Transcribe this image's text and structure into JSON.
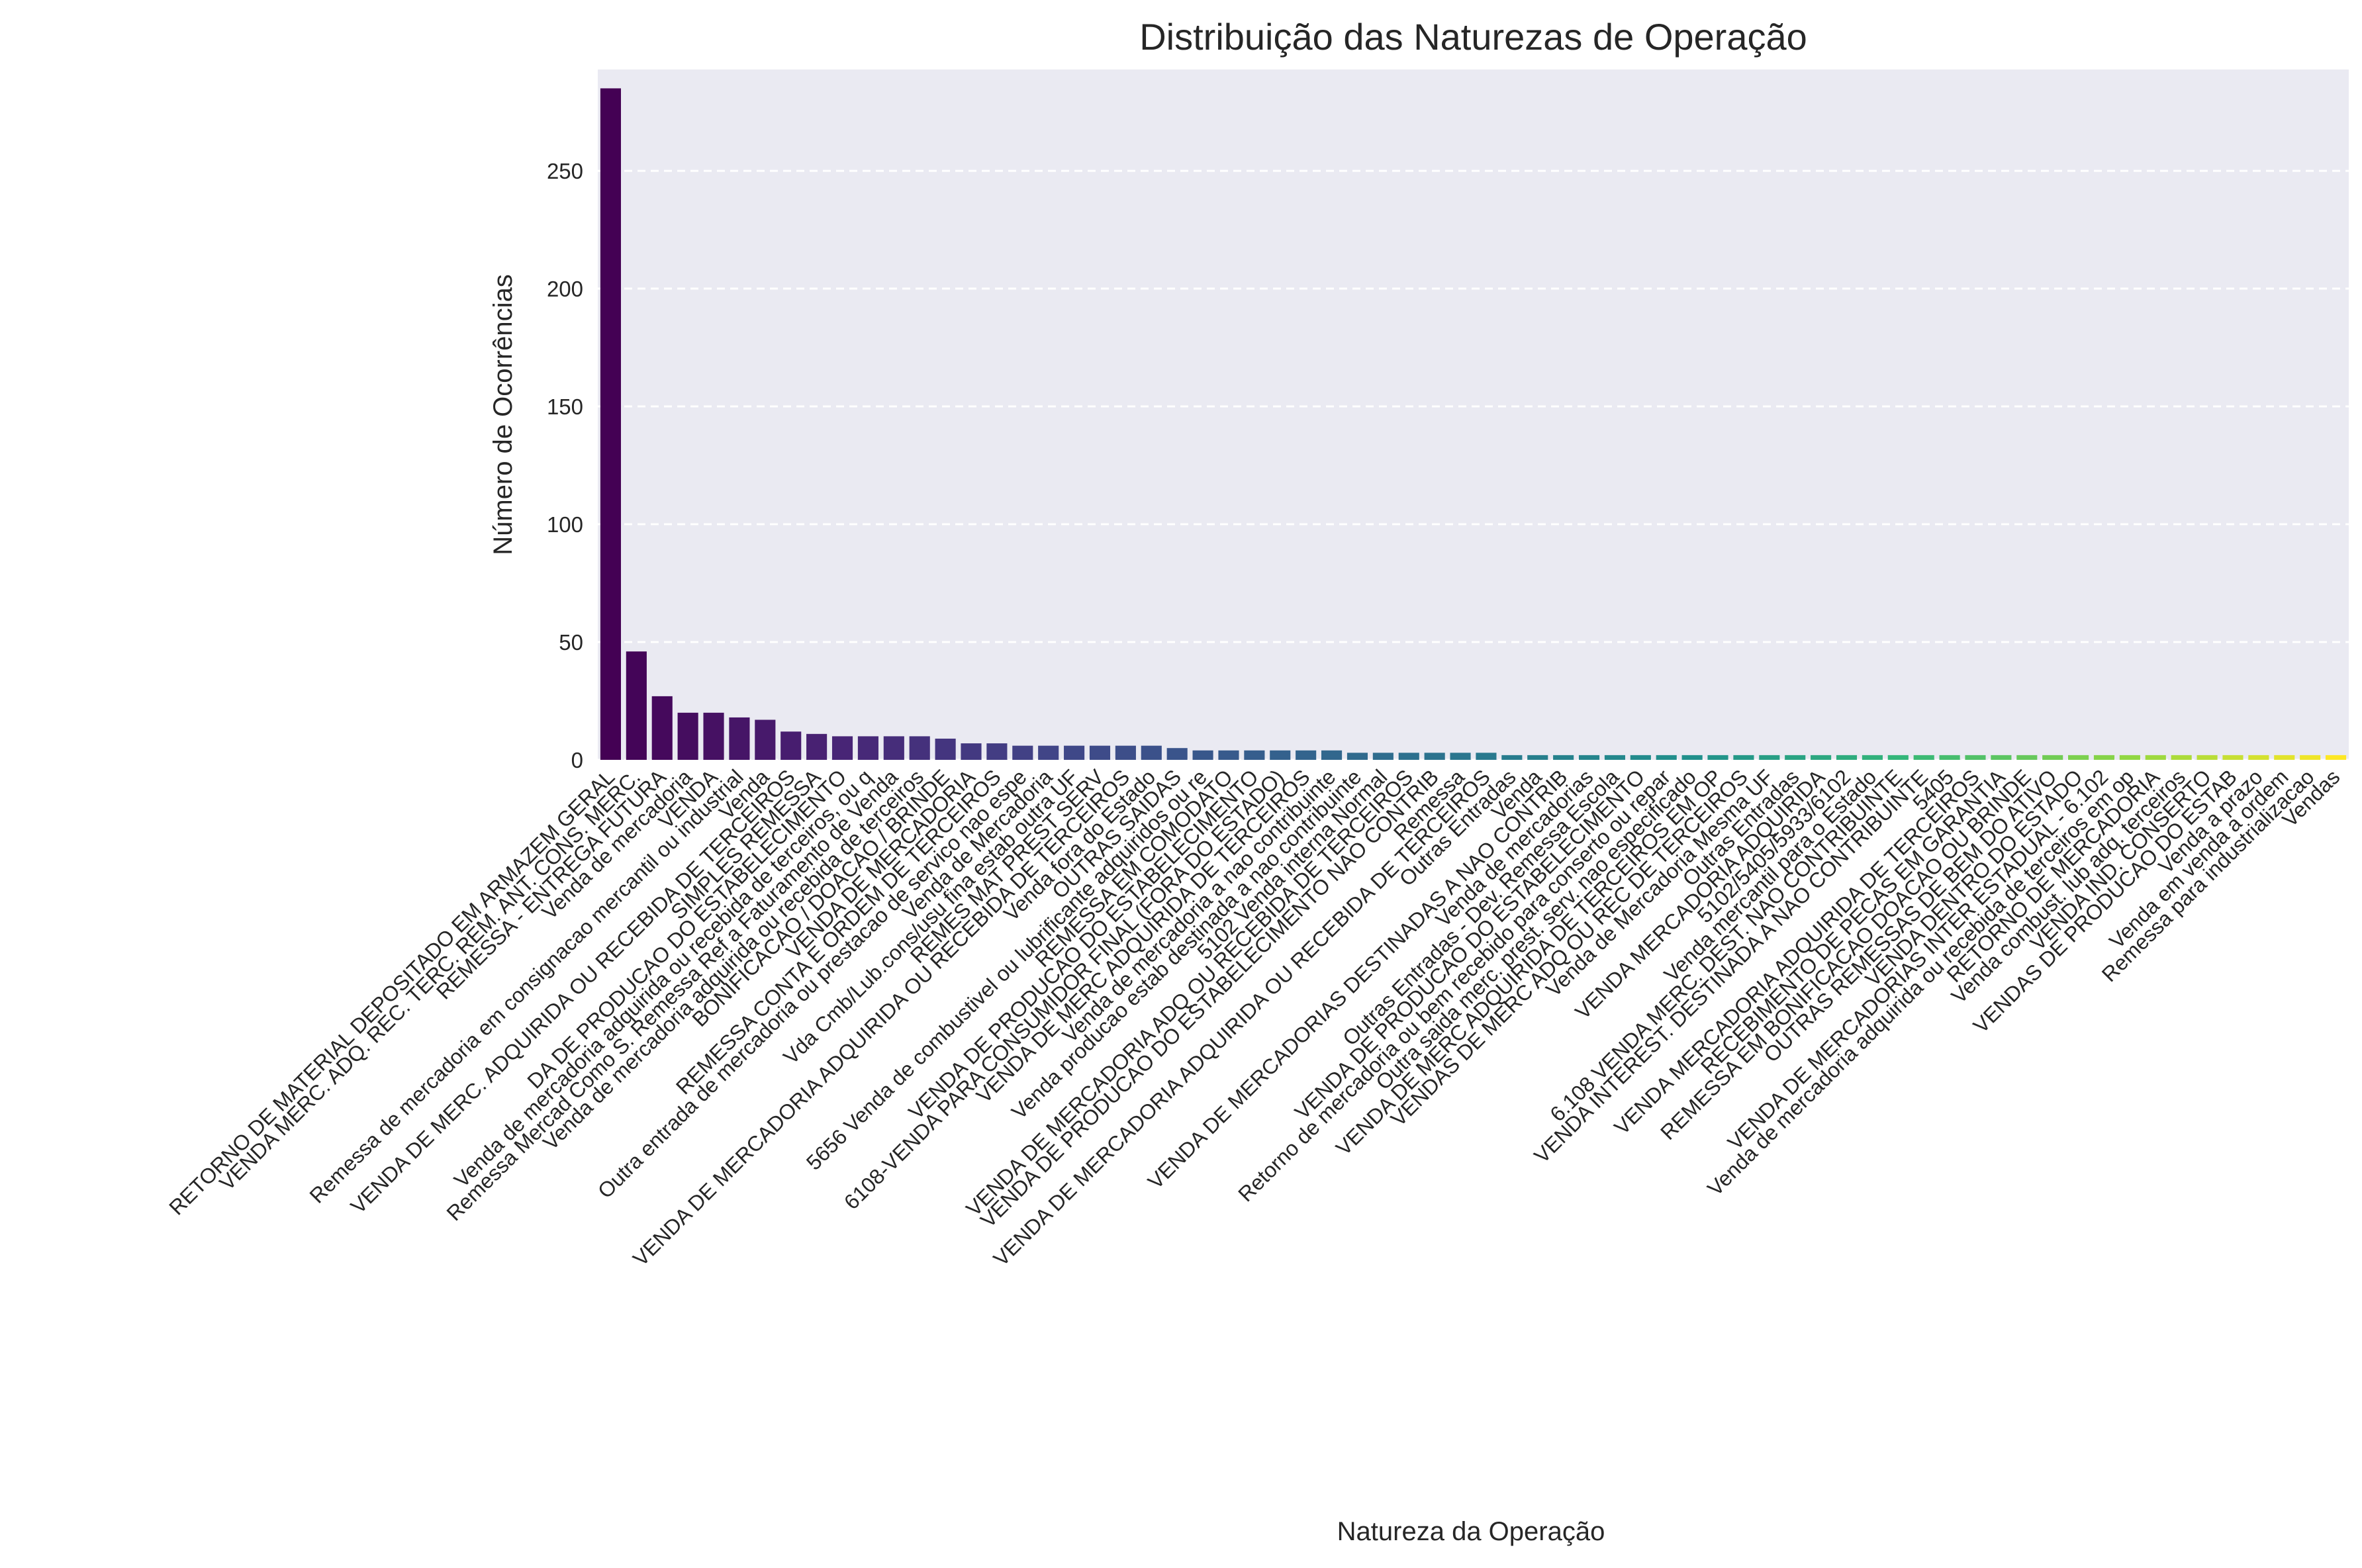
{
  "chart_data": {
    "type": "bar",
    "title": "Distribuição das Naturezas de Operação",
    "xlabel": "Natureza da Operação",
    "ylabel": "Número de Ocorrências",
    "ylim": [
      0,
      293
    ],
    "yticks": [
      0,
      50,
      100,
      150,
      200,
      250
    ],
    "grid": "y dashed",
    "palette": "viridis",
    "categories": [
      "RETORNO DE MATERIAL DEPOSITADO EM ARMAZEM GERAL",
      "VENDA MERC. ADQ. REC. TERC. REM. ANT. CONS. MERC.",
      "REMESSA - ENTREGA FUTURA",
      "Venda de mercadoria",
      "VENDA",
      "Remessa de mercadoria em consignacao mercantil ou industrial",
      "Venda",
      "VENDA DE MERC. ADQUIRIDA OU RECEBIDA DE TERCEIROS",
      "SIMPLES REMESSA",
      "DA DE PRODUCAO DO ESTABELECIMENTO",
      "Venda de mercadoria adquirida ou recebida de terceiros, ou q",
      "Remessa Mercad Como S. Remessa Ref a Faturamento de Venda",
      "Venda de mercadoria adquirida ou recebida de terceiros",
      "BONIFICACAO / DOACAO / BRINDE",
      "VENDA DE MERCADORIA",
      "REMESSA CONTA E ORDEM DE TERCEIROS",
      "Outra entrada de mercadoria ou prestacao de servico nao espe",
      "Venda de Mercadoria",
      "Vda Cmb/Lub.cons/usu fina estab outra UF",
      "REMES MAT PREST SERV",
      "VENDA DE MERCADORIA ADQUIRIDA OU RECEBIDA DE TERCEIROS",
      "Venda fora do Estado",
      "OUTRAS SAIDAS",
      "5656 Venda de combustivel ou lubrificante adquiridos ou re",
      "REMESSA EM COMODATO",
      "VENDA DE PRODUCAO DO ESTABELECIMENTO",
      "6108-VENDA PARA CONSUMIDOR FINAL (FORA DO ESTADO)",
      "VENDA DE MERC ADQUIRIDA DE TERCEIROS",
      "Venda de mercadoria a nao contribuinte",
      "Venda producao estab destinada a nao contribuinte",
      "5102 Venda interna Normal",
      "VENDA DE MERCADORIA ADQ OU RECEBIDA DE TERCEIROS",
      "VENDA DE PRODUCAO DO ESTABELECIMENTO NAO CONTRIB",
      "Remessa",
      "VENDA DE MERCADORIA ADQUIRIDA OU RECEBIDA DE TERCEIROS",
      "Outras Entradas",
      "Venda",
      "VENDA DE MERCADORIAS DESTINADAS A NAO CONTRIB",
      "Venda de mercadorias",
      "Outras Entradas - Dev. Remessa Escola",
      "VENDA DE PRODUCAO DO ESTABELECIMENTO",
      "Retorno de mercadoria ou bem recebido para conserto ou repar",
      "Outra saida merc. prest. serv. nao especificado",
      "VENDA DE MERC ADQUIRIDA DE TERCEIROS EM OP",
      "VENDAS DE MERC ADQ OU REC DE TERCEIROS",
      "Venda de Mercadoria Mesma UF",
      "Outras Entradas",
      "VENDA MERCADORIA ADQUIRIDA",
      "5102/5405/5933/6102",
      "Venda mercantil para o Estado",
      "6.108 VENDA MERC. DEST. NAO CONTRIBUINTE",
      "VENDA INTEREST. DESTINADA A NAO CONTRIBUINTE",
      "5405",
      "VENDA MERCADORIA ADQUIRIDA DE TERCEIROS",
      "RECEBIMENTO DE PECAS EM GARANTIA",
      "REMESSA EM BONIFICACAO DOACAO OU BRINDE",
      "OUTRAS REMESSAS DE BEM DO ATIVO",
      "VENDA DENTRO DO ESTADO",
      "VENDA DE MERCADORIAS INTER ESTADUAL - 6.102",
      "Venda de mercadoria adquirida ou recebida de terceiros em op",
      "RETORNO DE MERCADORIA",
      "Venda combust. lub adq. terceiros",
      "VENDA IND. CONSERTO",
      "VENDAS DE PRODUCAO DO ESTAB",
      "Venda a prazo",
      "Venda em venda a ordem",
      "Remessa para industrializacao",
      "Vendas"
    ],
    "values": [
      285,
      46,
      27,
      20,
      20,
      18,
      17,
      12,
      11,
      10,
      10,
      10,
      10,
      9,
      7,
      7,
      6,
      6,
      6,
      6,
      6,
      6,
      5,
      4,
      4,
      4,
      4,
      4,
      4,
      3,
      3,
      3,
      3,
      3,
      3,
      2,
      2,
      2,
      2,
      2,
      2,
      2,
      2,
      2,
      2,
      2,
      2,
      2,
      2,
      2,
      2,
      2,
      2,
      2,
      2,
      2,
      2,
      2,
      2,
      2,
      2,
      2,
      2,
      2,
      2,
      2,
      2,
      2
    ]
  }
}
